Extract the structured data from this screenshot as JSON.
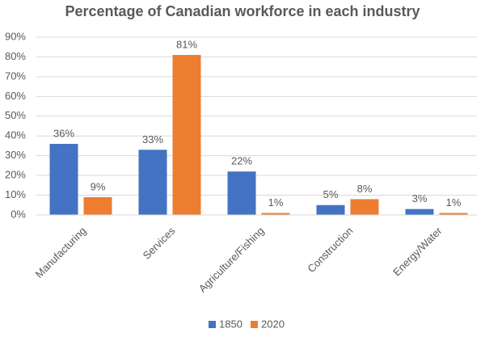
{
  "chart_data": {
    "type": "bar",
    "title": "Percentage of Canadian workforce in each industry",
    "categories": [
      "Manufacturing",
      "Services",
      "Agriculture/Fishing",
      "Construction",
      "Energy/Water"
    ],
    "series": [
      {
        "name": "1850",
        "color": "#4472c4",
        "values": [
          36,
          33,
          22,
          5,
          3
        ],
        "value_labels": [
          "36%",
          "33%",
          "22%",
          "5%",
          "3%"
        ]
      },
      {
        "name": "2020",
        "color": "#ed7d31",
        "values": [
          9,
          81,
          1,
          8,
          1
        ],
        "value_labels": [
          "9%",
          "81%",
          "1%",
          "8%",
          "1%"
        ]
      }
    ],
    "ylim": [
      0,
      90
    ],
    "yticks": [
      {
        "value": 0,
        "label": "0%"
      },
      {
        "value": 10,
        "label": "10%"
      },
      {
        "value": 20,
        "label": "20%"
      },
      {
        "value": 30,
        "label": "30%"
      },
      {
        "value": 40,
        "label": "40%"
      },
      {
        "value": 50,
        "label": "50%"
      },
      {
        "value": 60,
        "label": "60%"
      },
      {
        "value": 70,
        "label": "70%"
      },
      {
        "value": 80,
        "label": "80%"
      },
      {
        "value": 90,
        "label": "90%"
      }
    ],
    "grid": true,
    "legend": "bottom"
  }
}
